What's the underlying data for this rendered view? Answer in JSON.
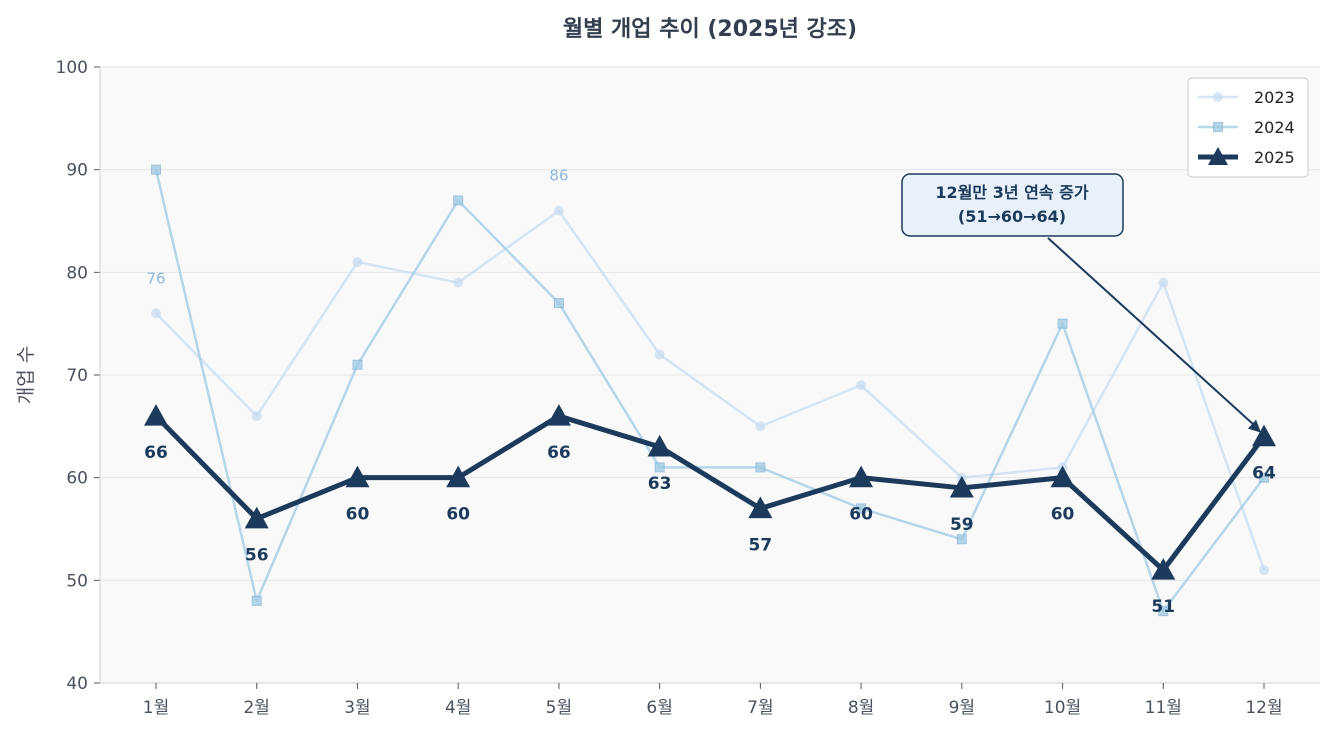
{
  "chart_data": {
    "type": "line",
    "title": "월별 개업 추이 (2025년 강조)",
    "xlabel": "",
    "ylabel": "개업 수",
    "categories": [
      "1월",
      "2월",
      "3월",
      "4월",
      "5월",
      "6월",
      "7월",
      "8월",
      "9월",
      "10월",
      "11월",
      "12월"
    ],
    "ylim": [
      40,
      100
    ],
    "yticks": [
      40,
      50,
      60,
      70,
      80,
      90,
      100
    ],
    "grid": true,
    "legend_placement": "top-right",
    "series": [
      {
        "name": "2023",
        "values": [
          76,
          66,
          81,
          79,
          86,
          72,
          65,
          69,
          60,
          61,
          79,
          51
        ],
        "color": "#c6dbef",
        "marker": "circle",
        "labeled_points": [
          {
            "index": 0,
            "text": "76"
          },
          {
            "index": 4,
            "text": "86"
          }
        ]
      },
      {
        "name": "2024",
        "values": [
          90,
          48,
          71,
          87,
          77,
          61,
          61,
          57,
          54,
          75,
          47,
          60
        ],
        "color": "#9ecae1",
        "marker": "square"
      },
      {
        "name": "2025",
        "values": [
          66,
          56,
          60,
          60,
          66,
          63,
          57,
          60,
          59,
          60,
          51,
          64
        ],
        "color": "#1b3a5c",
        "marker": "triangle",
        "data_labels": true
      }
    ],
    "annotation": {
      "text_line1": "12월만 3년 연속 증가",
      "text_line2": "(51→60→64)",
      "target_index": 11,
      "target_series": "2025"
    }
  }
}
